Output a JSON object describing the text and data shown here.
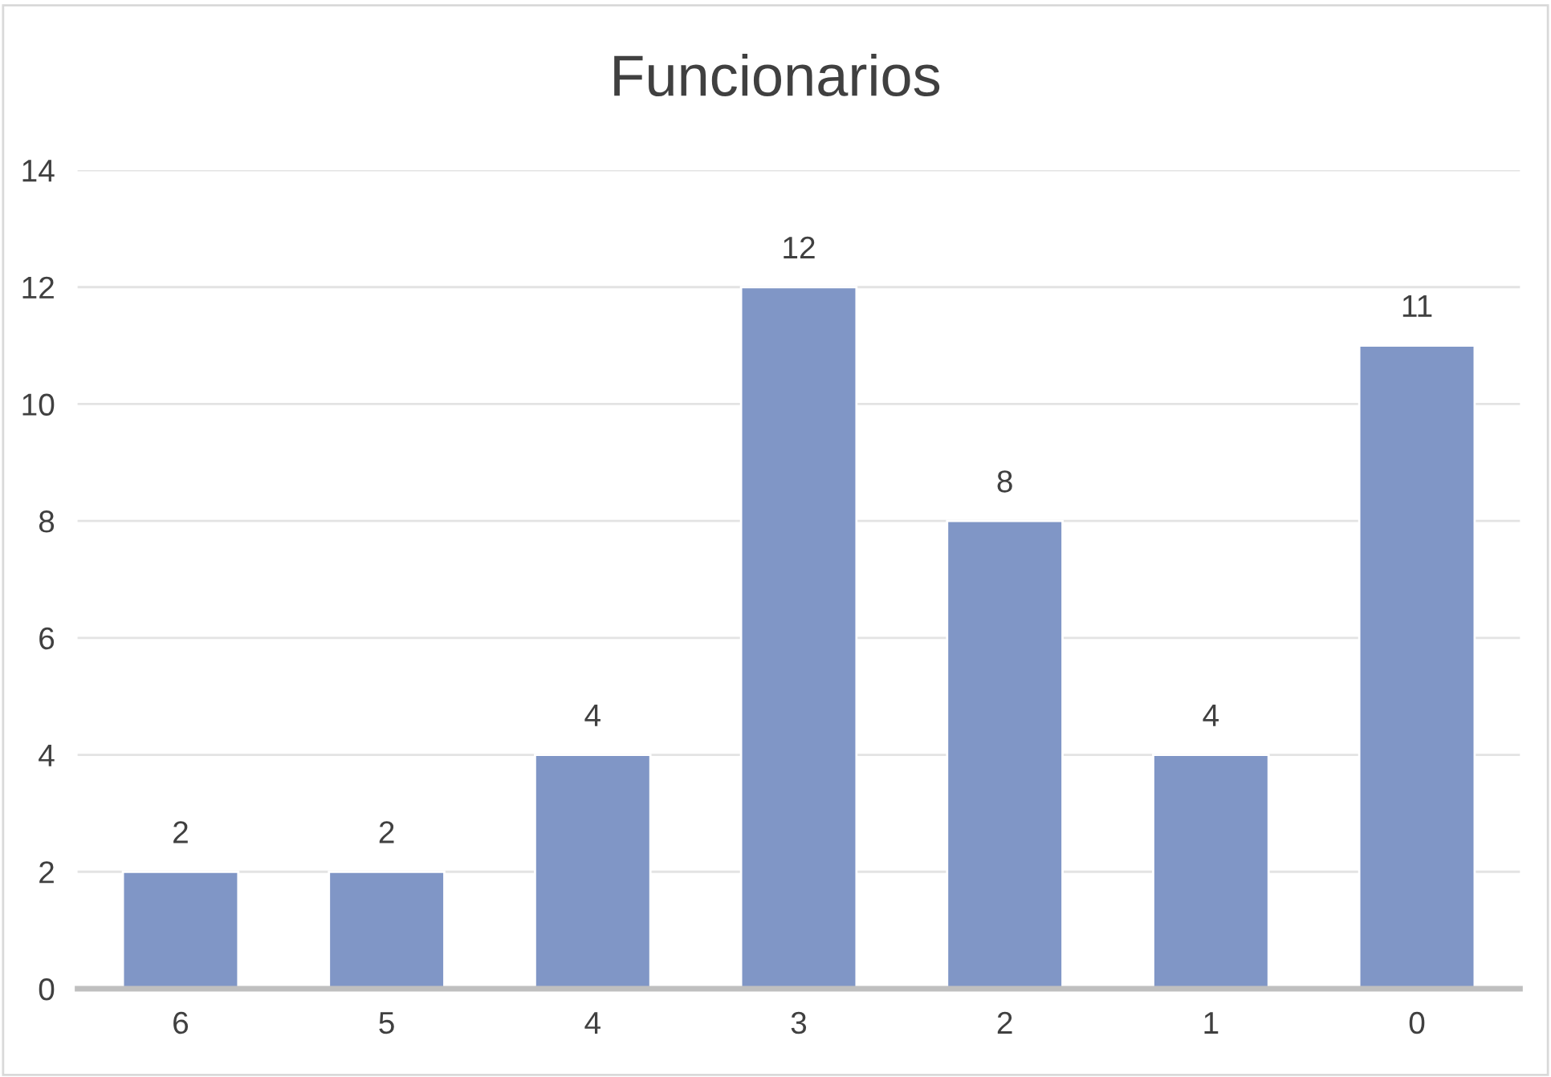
{
  "chart_data": {
    "type": "bar",
    "title": "Funcionarios",
    "categories": [
      "6",
      "5",
      "4",
      "3",
      "2",
      "1",
      "0"
    ],
    "values": [
      2,
      2,
      4,
      12,
      8,
      4,
      11
    ],
    "color": "#8096c6",
    "ylim": [
      0,
      14
    ],
    "yticks": [
      0,
      2,
      4,
      6,
      8,
      10,
      12,
      14
    ],
    "grid": "y",
    "data_labels": true
  }
}
